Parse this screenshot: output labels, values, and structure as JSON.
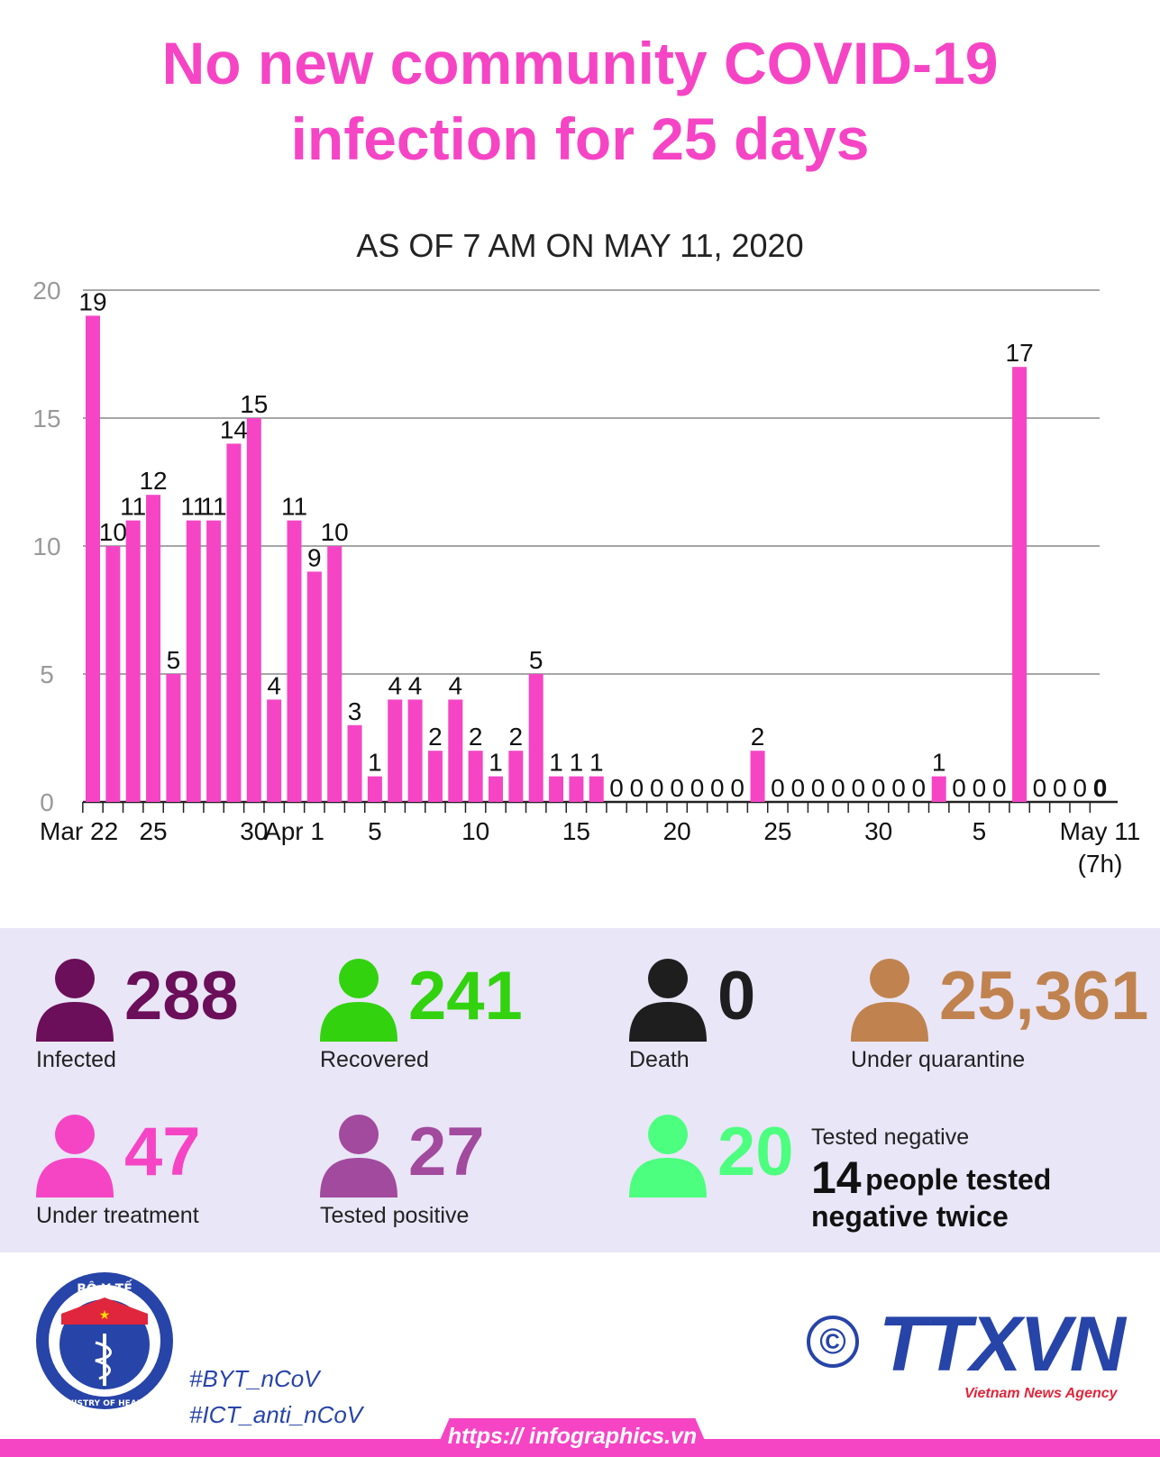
{
  "title_line1": "No new community COVID-19",
  "title_line2": "infection for 25 days",
  "subtitle": "AS OF 7 AM ON  MAY 11, 2020",
  "chart_data": {
    "type": "bar",
    "categories": [
      "Mar 22",
      "Mar 23",
      "Mar 24",
      "Mar 25",
      "Mar 26",
      "Mar 27",
      "Mar 28",
      "Mar 29",
      "Mar 30",
      "Mar 31",
      "Apr 1",
      "Apr 2",
      "Apr 3",
      "Apr 4",
      "Apr 5",
      "Apr 6",
      "Apr 7",
      "Apr 8",
      "Apr 9",
      "Apr 10",
      "Apr 11",
      "Apr 12",
      "Apr 13",
      "Apr 14",
      "Apr 15",
      "Apr 16",
      "Apr 17",
      "Apr 18",
      "Apr 19",
      "Apr 20",
      "Apr 21",
      "Apr 22",
      "Apr 23",
      "Apr 24",
      "Apr 25",
      "Apr 26",
      "Apr 27",
      "Apr 28",
      "Apr 29",
      "Apr 30",
      "May 1",
      "May 2",
      "May 3",
      "May 4",
      "May 5",
      "May 6",
      "May 7",
      "May 8",
      "May 9",
      "May 10",
      "May 11"
    ],
    "values": [
      19,
      10,
      11,
      12,
      5,
      11,
      11,
      14,
      15,
      4,
      11,
      9,
      10,
      3,
      1,
      4,
      4,
      2,
      4,
      2,
      1,
      2,
      5,
      1,
      1,
      1,
      0,
      0,
      0,
      0,
      0,
      0,
      0,
      2,
      0,
      0,
      0,
      0,
      0,
      0,
      0,
      0,
      1,
      0,
      0,
      0,
      17,
      0,
      0,
      0,
      0
    ],
    "ylim": [
      0,
      20
    ],
    "yticks": [
      "0",
      "5",
      "10",
      "15",
      "20"
    ],
    "xtick_labels": [
      {
        "index": 0,
        "label": "Mar 22"
      },
      {
        "index": 3,
        "label": "25"
      },
      {
        "index": 8,
        "label": "30"
      },
      {
        "index": 10,
        "label": "Apr 1"
      },
      {
        "index": 14,
        "label": "5"
      },
      {
        "index": 19,
        "label": "10"
      },
      {
        "index": 24,
        "label": "15"
      },
      {
        "index": 29,
        "label": "20"
      },
      {
        "index": 34,
        "label": "25"
      },
      {
        "index": 39,
        "label": "30"
      },
      {
        "index": 44,
        "label": "5"
      },
      {
        "index": 50,
        "label": "May 11"
      }
    ],
    "last_label_suffix": "(7h)",
    "bar_color": "#f545c5",
    "grid": true
  },
  "stats": {
    "infected": {
      "value": "288",
      "label": "Infected",
      "color": "#6b0f5a"
    },
    "recovered": {
      "value": "241",
      "label": "Recovered",
      "color": "#32d20f"
    },
    "death": {
      "value": "0",
      "label": "Death",
      "color": "#1e1e1e"
    },
    "quarantine": {
      "value": "25,361",
      "label": "Under quarantine",
      "color": "#c0834f"
    },
    "treatment": {
      "value": "47",
      "label": "Under treatment",
      "color": "#f545c5"
    },
    "positive": {
      "value": "27",
      "label": "Tested positive",
      "color": "#a24a9e"
    },
    "negative": {
      "value": "20",
      "label": "Tested negative",
      "color": "#4cff7f"
    },
    "negative_twice_number": "14",
    "negative_twice_text": "people tested negative twice"
  },
  "footer": {
    "logo_top": "BỘ Y TẾ",
    "logo_bottom": "MINISTRY OF HEALTH",
    "tag1": "#BYT_nCoV",
    "tag2": "#ICT_anti_nCoV",
    "copyright": "©",
    "brand": "TTXVN",
    "brand_sub": "Vietnam News Agency",
    "url": "https:// infographics.vn"
  }
}
